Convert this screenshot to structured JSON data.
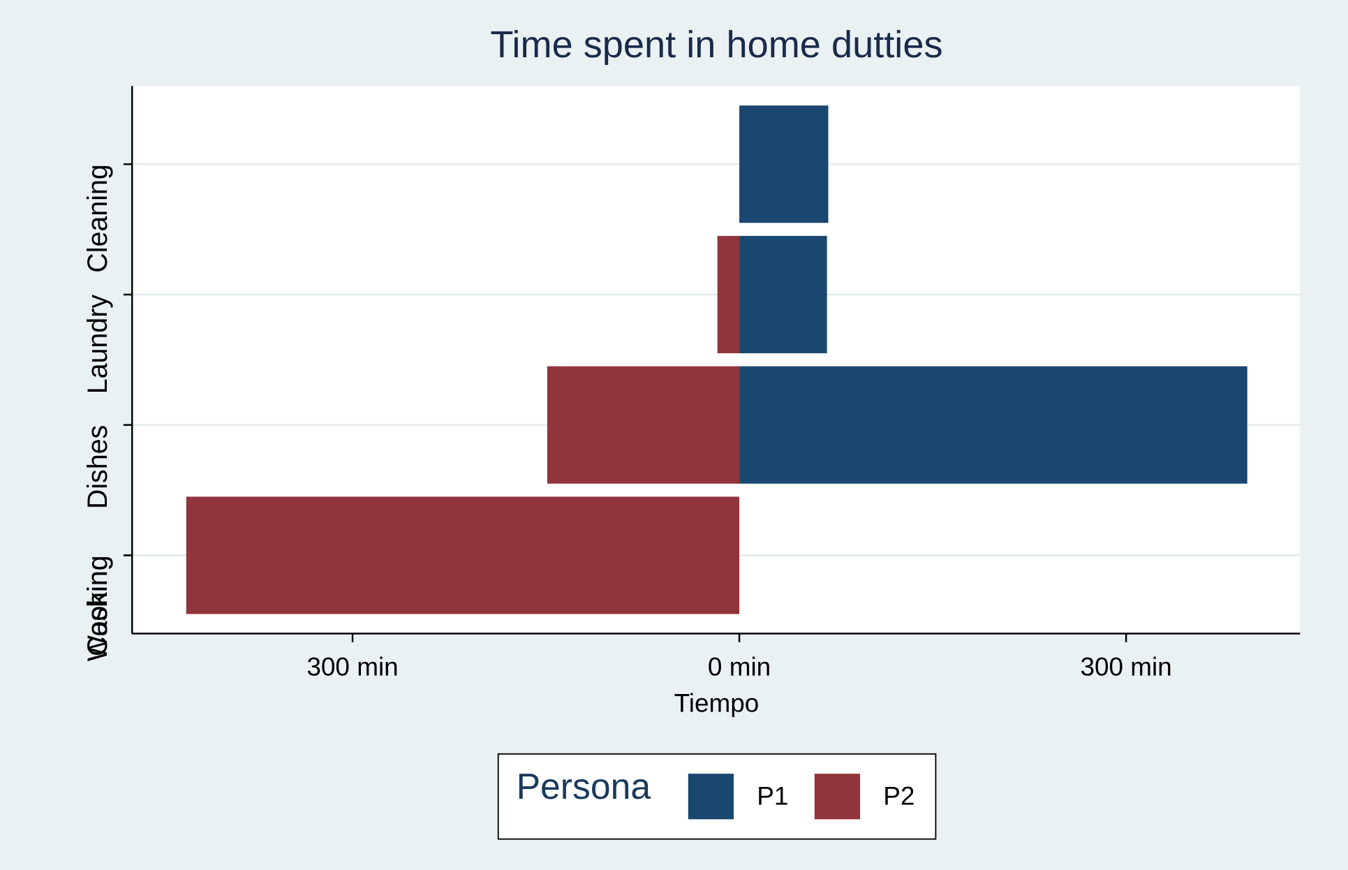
{
  "chart_data": {
    "type": "bar",
    "orientation": "horizontal",
    "title": "Time spent in home dutties",
    "x_label": "Tiempo",
    "categories": [
      "Cooking",
      "Washing",
      "Dishes",
      "Laundry",
      "Cleaning"
    ],
    "category_positions": [
      1,
      1,
      2,
      3,
      4
    ],
    "series": [
      {
        "name": "P1",
        "color": "#1a476f",
        "values": [
          null,
          null,
          394,
          68,
          69
        ]
      },
      {
        "name": "P2",
        "color": "#90353b",
        "values": [
          -429,
          null,
          -149,
          -17,
          null
        ]
      }
    ],
    "xlim": [
      -471,
      435
    ],
    "xticks": [
      {
        "value": -300,
        "label": "300 min"
      },
      {
        "value": 0,
        "label": "0 min"
      },
      {
        "value": 300,
        "label": "300 min"
      }
    ],
    "ylim": [
      0.4,
      4.6
    ],
    "legend_title": "Persona",
    "legend_position": "bottom",
    "grid": true
  }
}
